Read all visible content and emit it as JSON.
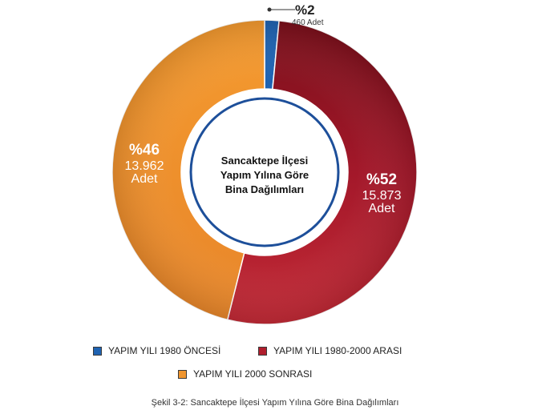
{
  "chart_data": {
    "type": "pie",
    "center_title_lines": [
      "Sancaktepe İlçesi",
      "Yapım Yılına Göre",
      "Bina Dağılımları"
    ],
    "slices": [
      {
        "name": "YAPIM YILI 1980 ÖNCESİ",
        "percent_label": "%2",
        "count_label": "460 Adet",
        "value": 460,
        "color": "#1f63b2"
      },
      {
        "name": "YAPIM YILI 1980-2000 ARASI",
        "percent_label": "%52",
        "count_label_lines": [
          "15.873",
          "Adet"
        ],
        "value": 15873,
        "color": "#b01e2d"
      },
      {
        "name": "YAPIM YILI 2000 SONRASI",
        "percent_label": "%46",
        "count_label_lines": [
          "13.962",
          "Adet"
        ],
        "value": 13962,
        "color": "#f0952e"
      }
    ],
    "legend": [
      {
        "label": "YAPIM YILI 1980 ÖNCESİ",
        "color": "#1f63b2"
      },
      {
        "label": "YAPIM YILI 1980-2000 ARASI",
        "color": "#b01e2d"
      },
      {
        "label": "YAPIM YILI 2000 SONRASI",
        "color": "#f0952e"
      }
    ],
    "colors": {
      "ring": "#1d4f9a"
    }
  },
  "caption": "Şekil 3-2: Sancaktepe İlçesi Yapım Yılına Göre Bina Dağılımları"
}
